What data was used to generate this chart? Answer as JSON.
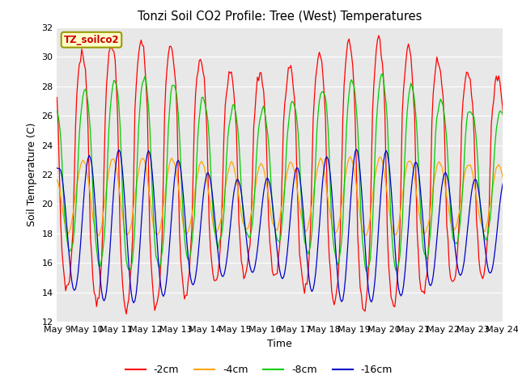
{
  "title": "Tonzi Soil CO2 Profile: Tree (West) Temperatures",
  "xlabel": "Time",
  "ylabel": "Soil Temperature (C)",
  "ylim": [
    12,
    32
  ],
  "x_tick_labels": [
    "May 9",
    "May 10",
    "May 11",
    "May 12",
    "May 13",
    "May 14",
    "May 15",
    "May 16",
    "May 17",
    "May 18",
    "May 19",
    "May 20",
    "May 21",
    "May 22",
    "May 23",
    "May 24"
  ],
  "legend_label": "TZ_soilco2",
  "line_colors": {
    "-2cm": "#ff0000",
    "-4cm": "#ffa500",
    "-8cm": "#00cc00",
    "-16cm": "#0000cc"
  },
  "bg_color": "#e8e8e8",
  "annotation_box_color": "#ffffcc",
  "annotation_text_color": "#cc0000",
  "y_ticks": [
    12,
    14,
    16,
    18,
    20,
    22,
    24,
    26,
    28,
    30,
    32
  ]
}
